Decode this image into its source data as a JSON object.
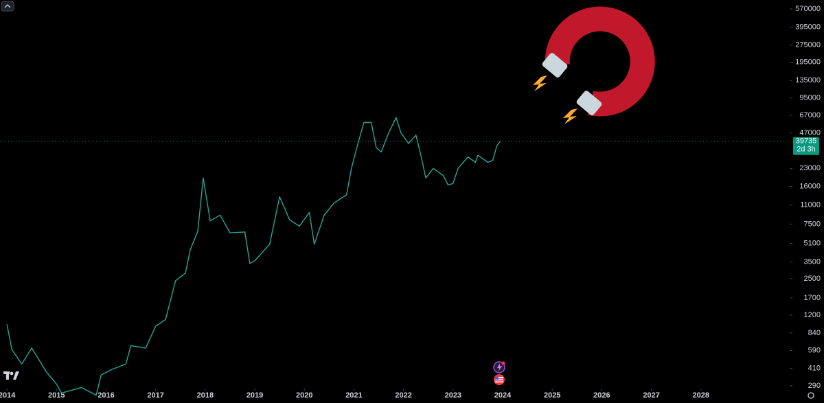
{
  "chart_data": {
    "type": "line",
    "x": [
      2014.0,
      2014.1,
      2014.3,
      2014.5,
      2014.8,
      2015.0,
      2015.1,
      2015.5,
      2015.8,
      2015.9,
      2016.1,
      2016.4,
      2016.5,
      2016.8,
      2017.0,
      2017.2,
      2017.4,
      2017.6,
      2017.7,
      2017.85,
      2017.96,
      2018.1,
      2018.3,
      2018.5,
      2018.8,
      2018.9,
      2019.0,
      2019.3,
      2019.5,
      2019.7,
      2019.9,
      2020.1,
      2020.2,
      2020.4,
      2020.6,
      2020.85,
      2020.95,
      2021.05,
      2021.2,
      2021.35,
      2021.45,
      2021.55,
      2021.7,
      2021.85,
      2021.95,
      2022.1,
      2022.25,
      2022.35,
      2022.45,
      2022.6,
      2022.8,
      2022.9,
      2023.0,
      2023.1,
      2023.3,
      2023.45,
      2023.5,
      2023.7,
      2023.8,
      2023.88,
      2023.95
    ],
    "series": [
      {
        "color": "#26a69a",
        "values": [
          1000,
          600,
          450,
          620,
          380,
          300,
          250,
          280,
          240,
          360,
          400,
          450,
          650,
          620,
          960,
          1100,
          2400,
          2800,
          4500,
          6500,
          19000,
          8000,
          9000,
          6300,
          6400,
          3400,
          3600,
          5000,
          13000,
          8200,
          7200,
          9500,
          5000,
          9000,
          11500,
          13500,
          23000,
          34000,
          58000,
          58000,
          35000,
          32000,
          47000,
          64000,
          47000,
          38000,
          45000,
          30000,
          19000,
          23000,
          20000,
          16500,
          17000,
          23000,
          29000,
          26000,
          30000,
          26000,
          27000,
          36000,
          39735
        ]
      }
    ],
    "log_scale": true,
    "xlim": [
      2013.86,
      2029.79
    ],
    "xticks": [
      2014,
      2015,
      2016,
      2017,
      2018,
      2019,
      2020,
      2021,
      2022,
      2023,
      2024,
      2025,
      2026,
      2027,
      2028
    ],
    "ylim": [
      274,
      682000
    ],
    "yticks": [
      570000,
      395000,
      275000,
      195000,
      135000,
      95000,
      67000,
      47000,
      23000,
      16000,
      11000,
      7500,
      5100,
      3500,
      2500,
      1700,
      1200,
      840,
      590,
      410,
      290
    ],
    "last_price": 39735,
    "last_price_color": "#089981",
    "countdown": "2d 3h"
  }
}
